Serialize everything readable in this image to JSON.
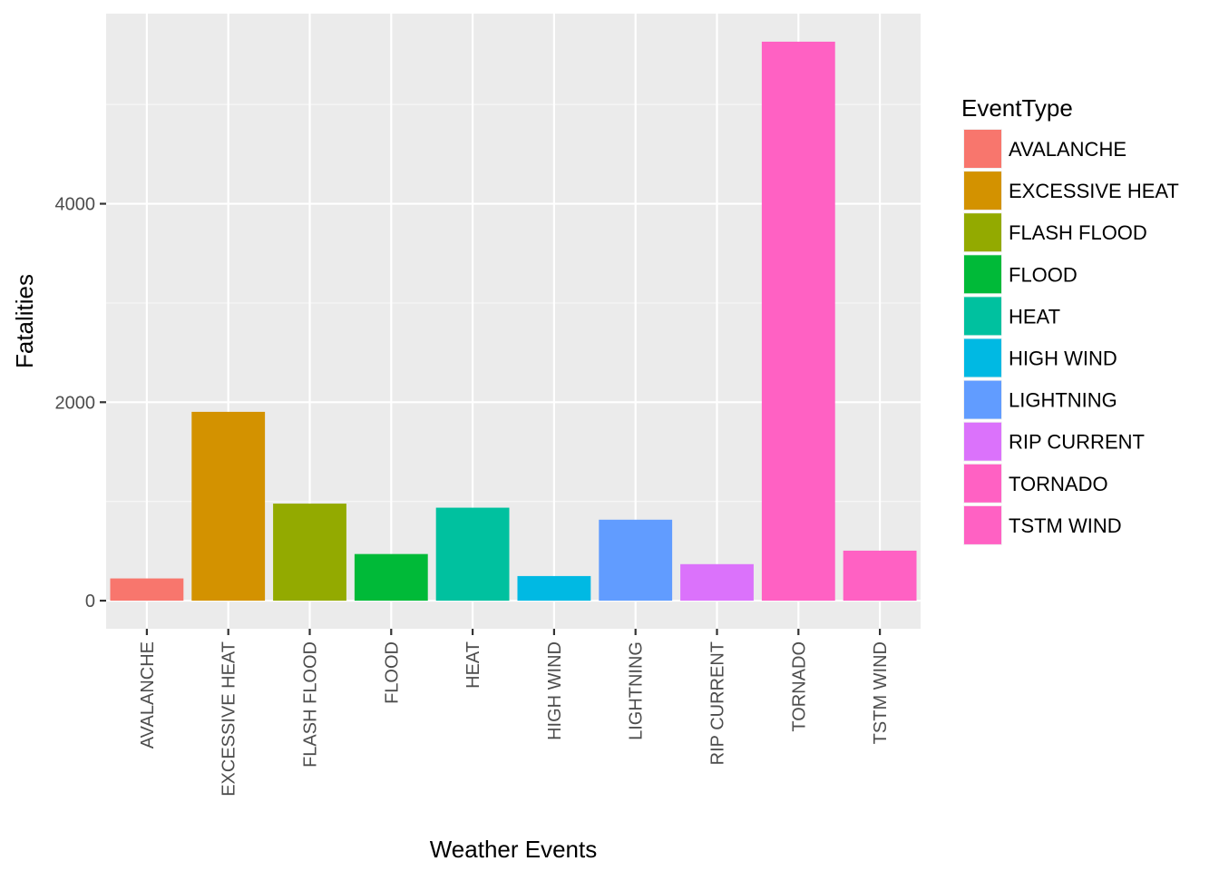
{
  "chart_data": {
    "type": "bar",
    "title": "",
    "xlabel": "Weather Events",
    "ylabel": "Fatalities",
    "categories": [
      "AVALANCHE",
      "EXCESSIVE HEAT",
      "FLASH FLOOD",
      "FLOOD",
      "HEAT",
      "HIGH WIND",
      "LIGHTNING",
      "RIP CURRENT",
      "TORNADO",
      "TSTM WIND"
    ],
    "values": [
      224,
      1903,
      978,
      470,
      937,
      248,
      816,
      368,
      5633,
      504
    ],
    "colors": [
      "#F8766D",
      "#D39200",
      "#93AA00",
      "#00BA38",
      "#00C19F",
      "#00B9E3",
      "#619CFF",
      "#DB72FB",
      "#FF61C3",
      "#FF61C3"
    ],
    "yticks": [
      0,
      2000,
      4000
    ],
    "ylim": [
      -283,
      5916
    ],
    "grid": true,
    "x_tick_rotation": "vertical",
    "legend": {
      "title": "EventType",
      "placement": "right"
    }
  }
}
